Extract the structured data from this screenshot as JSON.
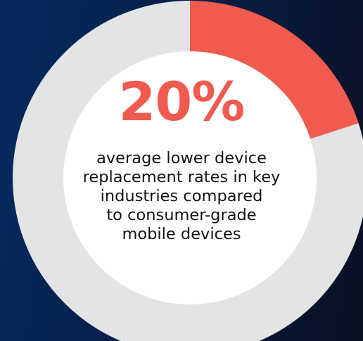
{
  "chart_data": {
    "type": "pie",
    "style": "donut",
    "slices": [
      {
        "value": 20,
        "color": "#f05a4f"
      },
      {
        "value": 80,
        "color": "#e3e4e6"
      }
    ],
    "center_value": "20%",
    "caption_lines": [
      "average lower device",
      "replacement rates in key",
      "industries compared",
      "to consumer-grade",
      "mobile devices"
    ]
  },
  "colors": {
    "accent": "#f05a4f",
    "track": "#e3e4e6",
    "inner": "#ffffff",
    "background_start": "#062a5f",
    "background_end": "#0a0f22"
  }
}
